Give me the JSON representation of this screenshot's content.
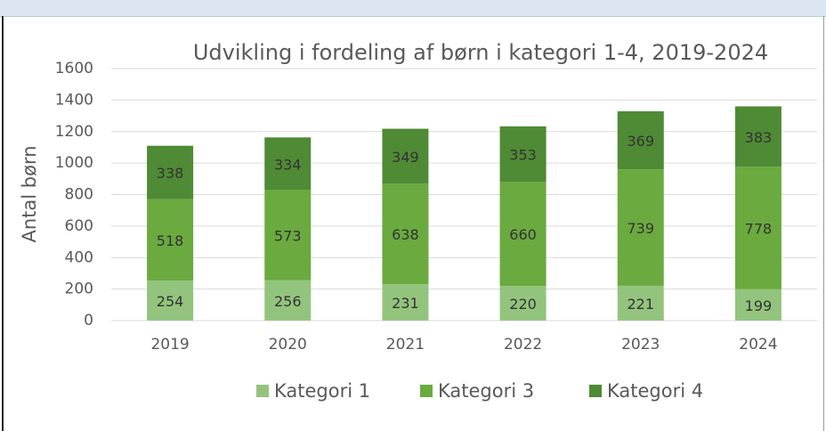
{
  "chart_data": {
    "type": "stacked_bar",
    "title": "Udvikling i fordeling af børn i kategori 1-4, 2019-2024",
    "y_label": "Antal børn",
    "categories": [
      "2019",
      "2020",
      "2021",
      "2022",
      "2023",
      "2024"
    ],
    "series": [
      {
        "name": "Kategori 1",
        "color": "#93c47d",
        "values": [
          254,
          256,
          231,
          220,
          221,
          199
        ]
      },
      {
        "name": "Kategori 3",
        "color": "#6aaa3f",
        "values": [
          518,
          573,
          638,
          660,
          739,
          778
        ]
      },
      {
        "name": "Kategori 4",
        "color": "#4f8a35",
        "values": [
          338,
          334,
          349,
          353,
          369,
          383
        ]
      }
    ],
    "ylim": [
      0,
      1600
    ],
    "yticks": [
      0,
      200,
      400,
      600,
      800,
      1000,
      1200,
      1400,
      1600
    ],
    "grid": true,
    "legend": "bottom"
  }
}
